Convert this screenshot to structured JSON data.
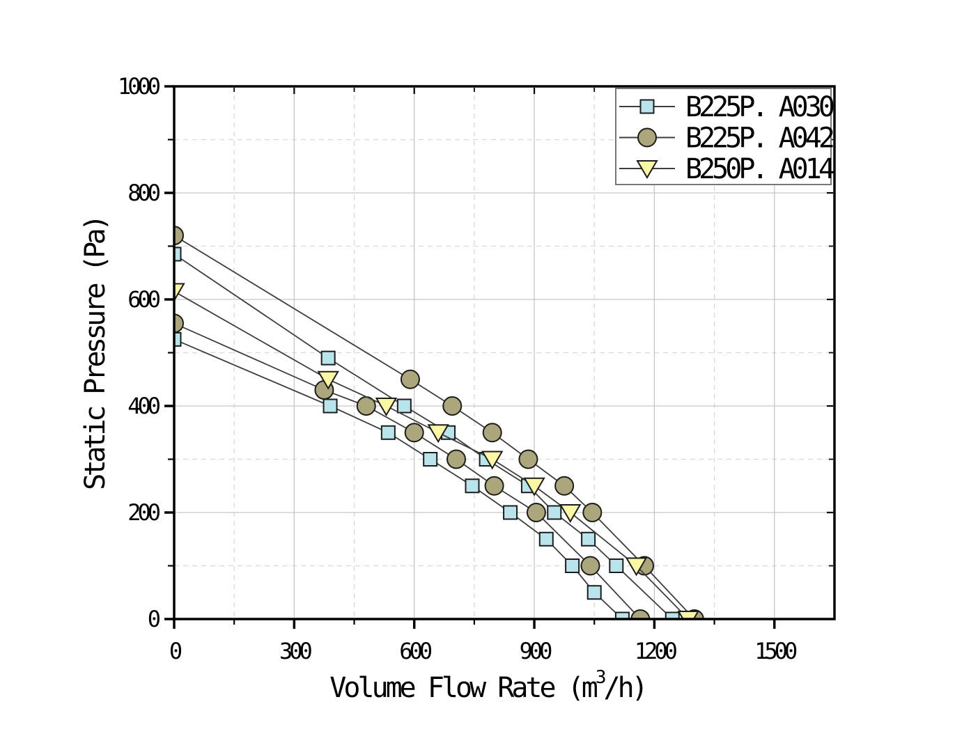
{
  "canvas": {
    "background": "#ffffff"
  },
  "chart_data": {
    "type": "line",
    "title": "",
    "xlabel": "Volume Flow Rate (m³/h)",
    "xlabel_parts": {
      "pre": "Volume Flow Rate (m",
      "sup": "3",
      "post": "/h)"
    },
    "ylabel": "Static Pressure (Pa)",
    "xlim": [
      0,
      1650
    ],
    "ylim": [
      0,
      1000
    ],
    "x_major_ticks": [
      0,
      300,
      600,
      900,
      1200,
      1500
    ],
    "x_minor_ticks": [
      150,
      450,
      750,
      1050,
      1350
    ],
    "y_major_ticks": [
      0,
      200,
      400,
      600,
      800,
      1000
    ],
    "y_minor_ticks": [
      100,
      300,
      500,
      700,
      900
    ],
    "grid": {
      "major": "solid",
      "minor": "dashed",
      "major_color": "#c6c6c6",
      "minor_color": "#d8d8d8"
    },
    "legend_position": "top-right",
    "axis_color": "#000000",
    "line_color": "#3d3d3d",
    "marker_stroke": "#1c1c1c",
    "series": [
      {
        "name": "B225P. A030",
        "marker": "square",
        "marker_fill": "#b8e4ec",
        "curves": [
          [
            [
              0,
              685
            ],
            [
              385,
              490
            ],
            [
              575,
              400
            ],
            [
              685,
              350
            ],
            [
              780,
              300
            ],
            [
              885,
              250
            ],
            [
              950,
              200
            ],
            [
              1035,
              150
            ],
            [
              1105,
              100
            ],
            [
              1245,
              0
            ]
          ],
          [
            [
              0,
              525
            ],
            [
              390,
              400
            ],
            [
              535,
              350
            ],
            [
              640,
              300
            ],
            [
              745,
              250
            ],
            [
              840,
              200
            ],
            [
              930,
              150
            ],
            [
              995,
              100
            ],
            [
              1050,
              50
            ],
            [
              1120,
              0
            ]
          ]
        ]
      },
      {
        "name": "B225P. A042",
        "marker": "circle",
        "marker_fill": "#aca67b",
        "curves": [
          [
            [
              0,
              720
            ],
            [
              590,
              450
            ],
            [
              695,
              400
            ],
            [
              795,
              350
            ],
            [
              885,
              300
            ],
            [
              975,
              250
            ],
            [
              1045,
              200
            ],
            [
              1175,
              100
            ],
            [
              1300,
              0
            ]
          ],
          [
            [
              0,
              555
            ],
            [
              375,
              430
            ],
            [
              480,
              400
            ],
            [
              600,
              350
            ],
            [
              705,
              300
            ],
            [
              800,
              250
            ],
            [
              905,
              200
            ],
            [
              1040,
              100
            ],
            [
              1165,
              0
            ]
          ]
        ]
      },
      {
        "name": "B250P. A014",
        "marker": "triangle-down",
        "marker_fill": "#fbf7a4",
        "curves": [
          [
            [
              0,
              615
            ],
            [
              385,
              450
            ],
            [
              530,
              400
            ],
            [
              660,
              350
            ],
            [
              795,
              300
            ],
            [
              900,
              250
            ],
            [
              990,
              200
            ],
            [
              1155,
              100
            ],
            [
              1285,
              0
            ]
          ]
        ]
      }
    ]
  }
}
